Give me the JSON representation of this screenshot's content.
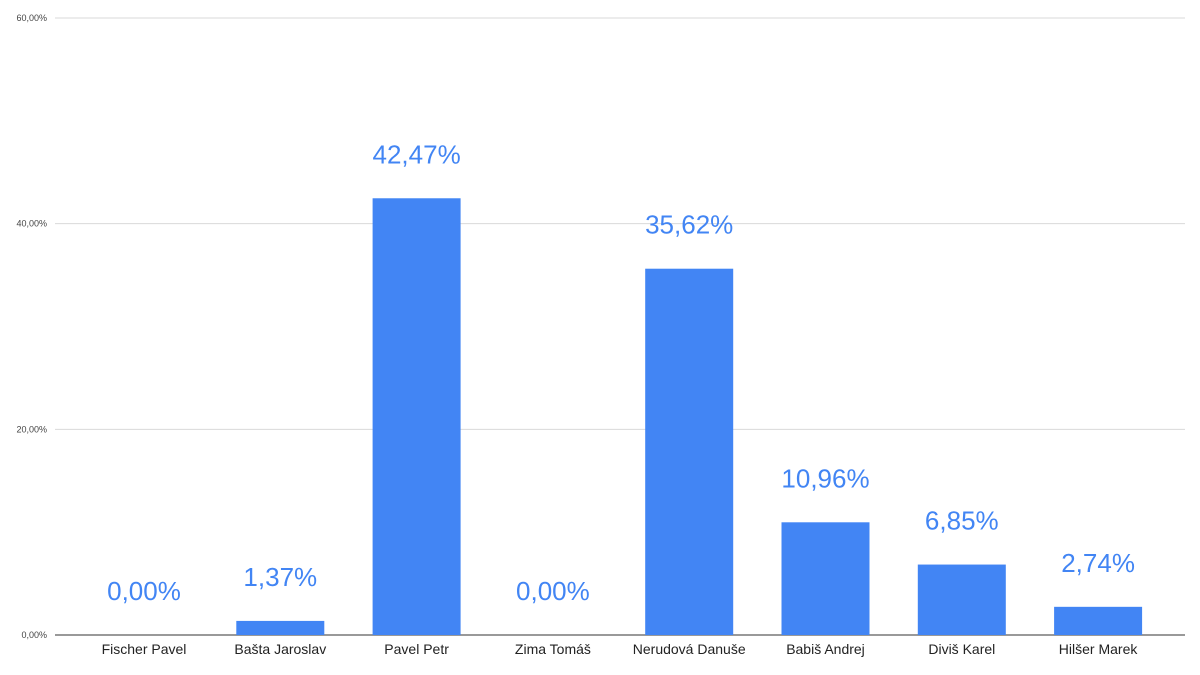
{
  "chart_data": {
    "type": "bar",
    "categories": [
      "Fischer Pavel",
      "Bašta Jaroslav",
      "Pavel Petr",
      "Zima Tomáš",
      "Nerudová Danuše",
      "Babiš Andrej",
      "Diviš Karel",
      "Hilšer Marek"
    ],
    "values": [
      0.0,
      1.37,
      42.47,
      0.0,
      35.62,
      10.96,
      6.85,
      2.74
    ],
    "data_labels": [
      "0,00%",
      "1,37%",
      "42,47%",
      "0,00%",
      "35,62%",
      "10,96%",
      "6,85%",
      "2,74%"
    ],
    "y_ticks": [
      0,
      20,
      40,
      60
    ],
    "y_tick_labels": [
      "0,00%",
      "20,00%",
      "40,00%",
      "60,00%"
    ],
    "ylim": [
      0,
      60
    ],
    "title": "",
    "xlabel": "",
    "ylabel": "",
    "grid": true,
    "legend": "none",
    "colors": {
      "bar": "#4285f4",
      "label": "#4285f4",
      "grid": "#d9d9d9",
      "axis": "#333333"
    }
  }
}
